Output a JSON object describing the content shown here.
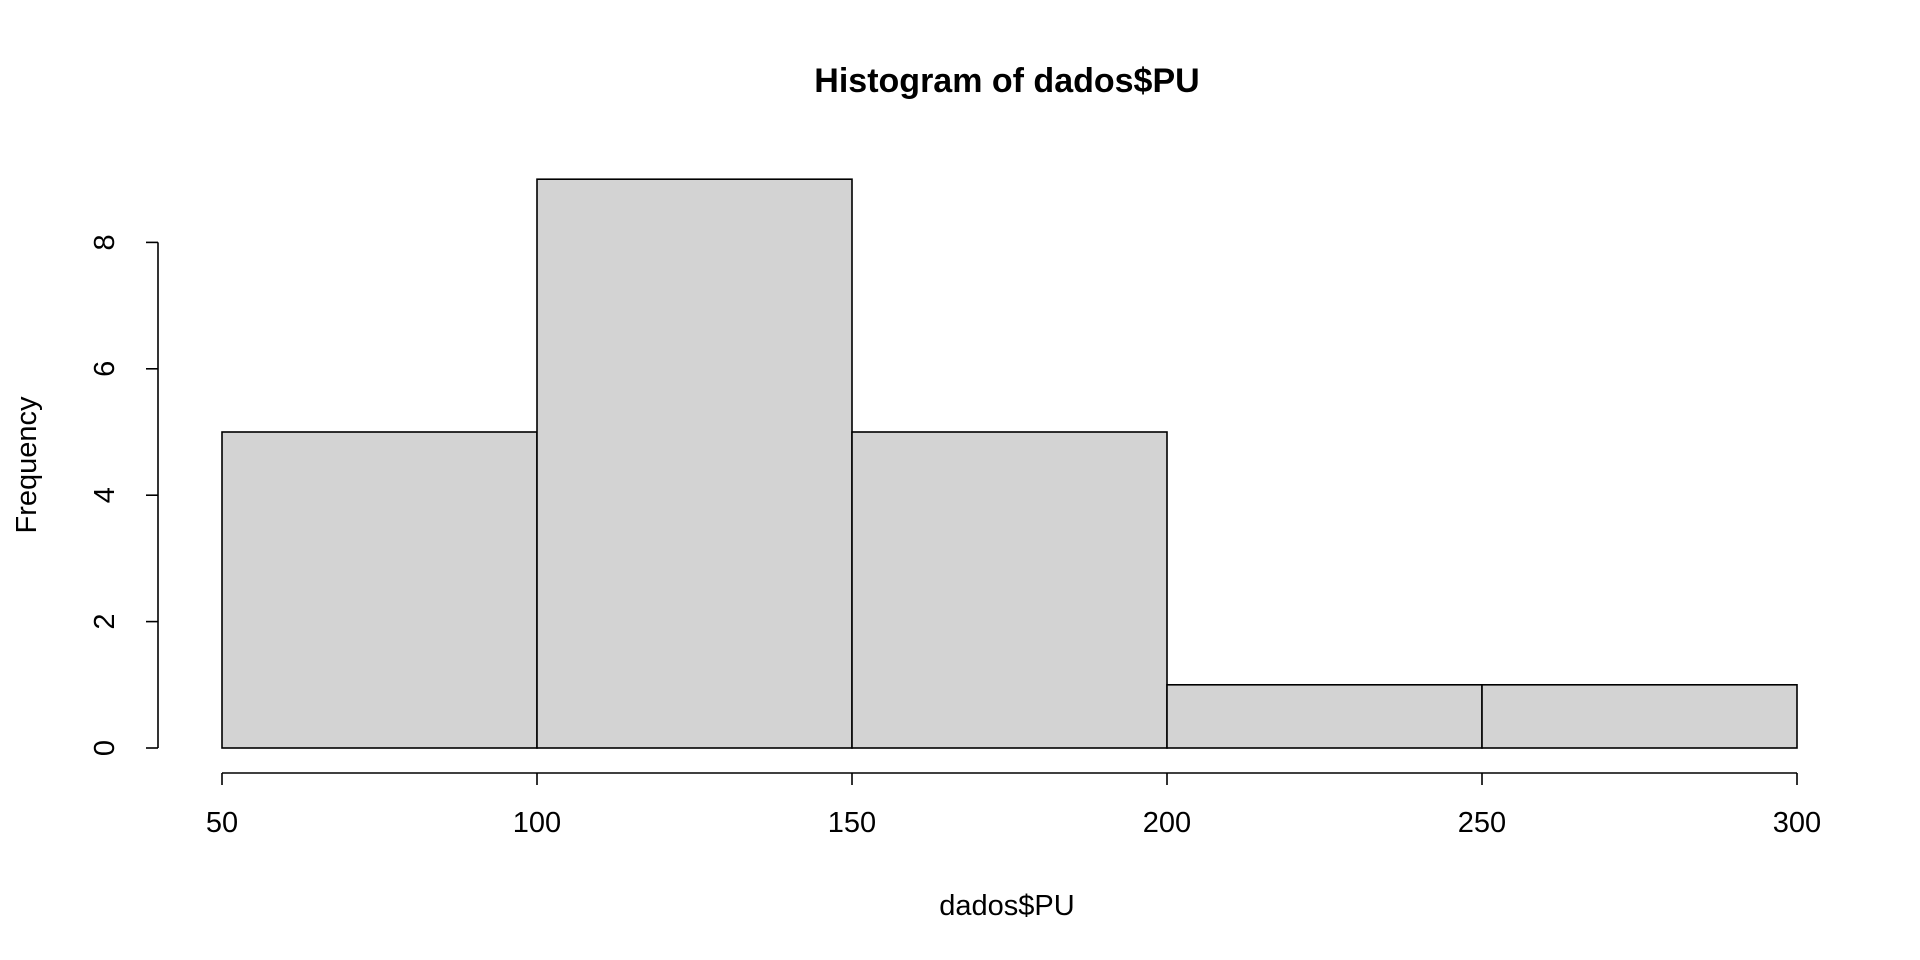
{
  "chart_data": {
    "type": "bar",
    "title": "Histogram of dados$PU",
    "xlabel": "dados$PU",
    "ylabel": "Frequency",
    "bins": [
      {
        "start": 50,
        "end": 100,
        "count": 5
      },
      {
        "start": 100,
        "end": 150,
        "count": 9
      },
      {
        "start": 150,
        "end": 200,
        "count": 5
      },
      {
        "start": 200,
        "end": 250,
        "count": 1
      },
      {
        "start": 250,
        "end": 300,
        "count": 1
      }
    ],
    "x_ticks": [
      50,
      100,
      150,
      200,
      250,
      300
    ],
    "y_ticks": [
      0,
      2,
      4,
      6,
      8
    ],
    "xlim": [
      50,
      300
    ],
    "ylim": [
      0,
      9
    ],
    "grid": false,
    "bar_color": "#d3d3d3"
  }
}
